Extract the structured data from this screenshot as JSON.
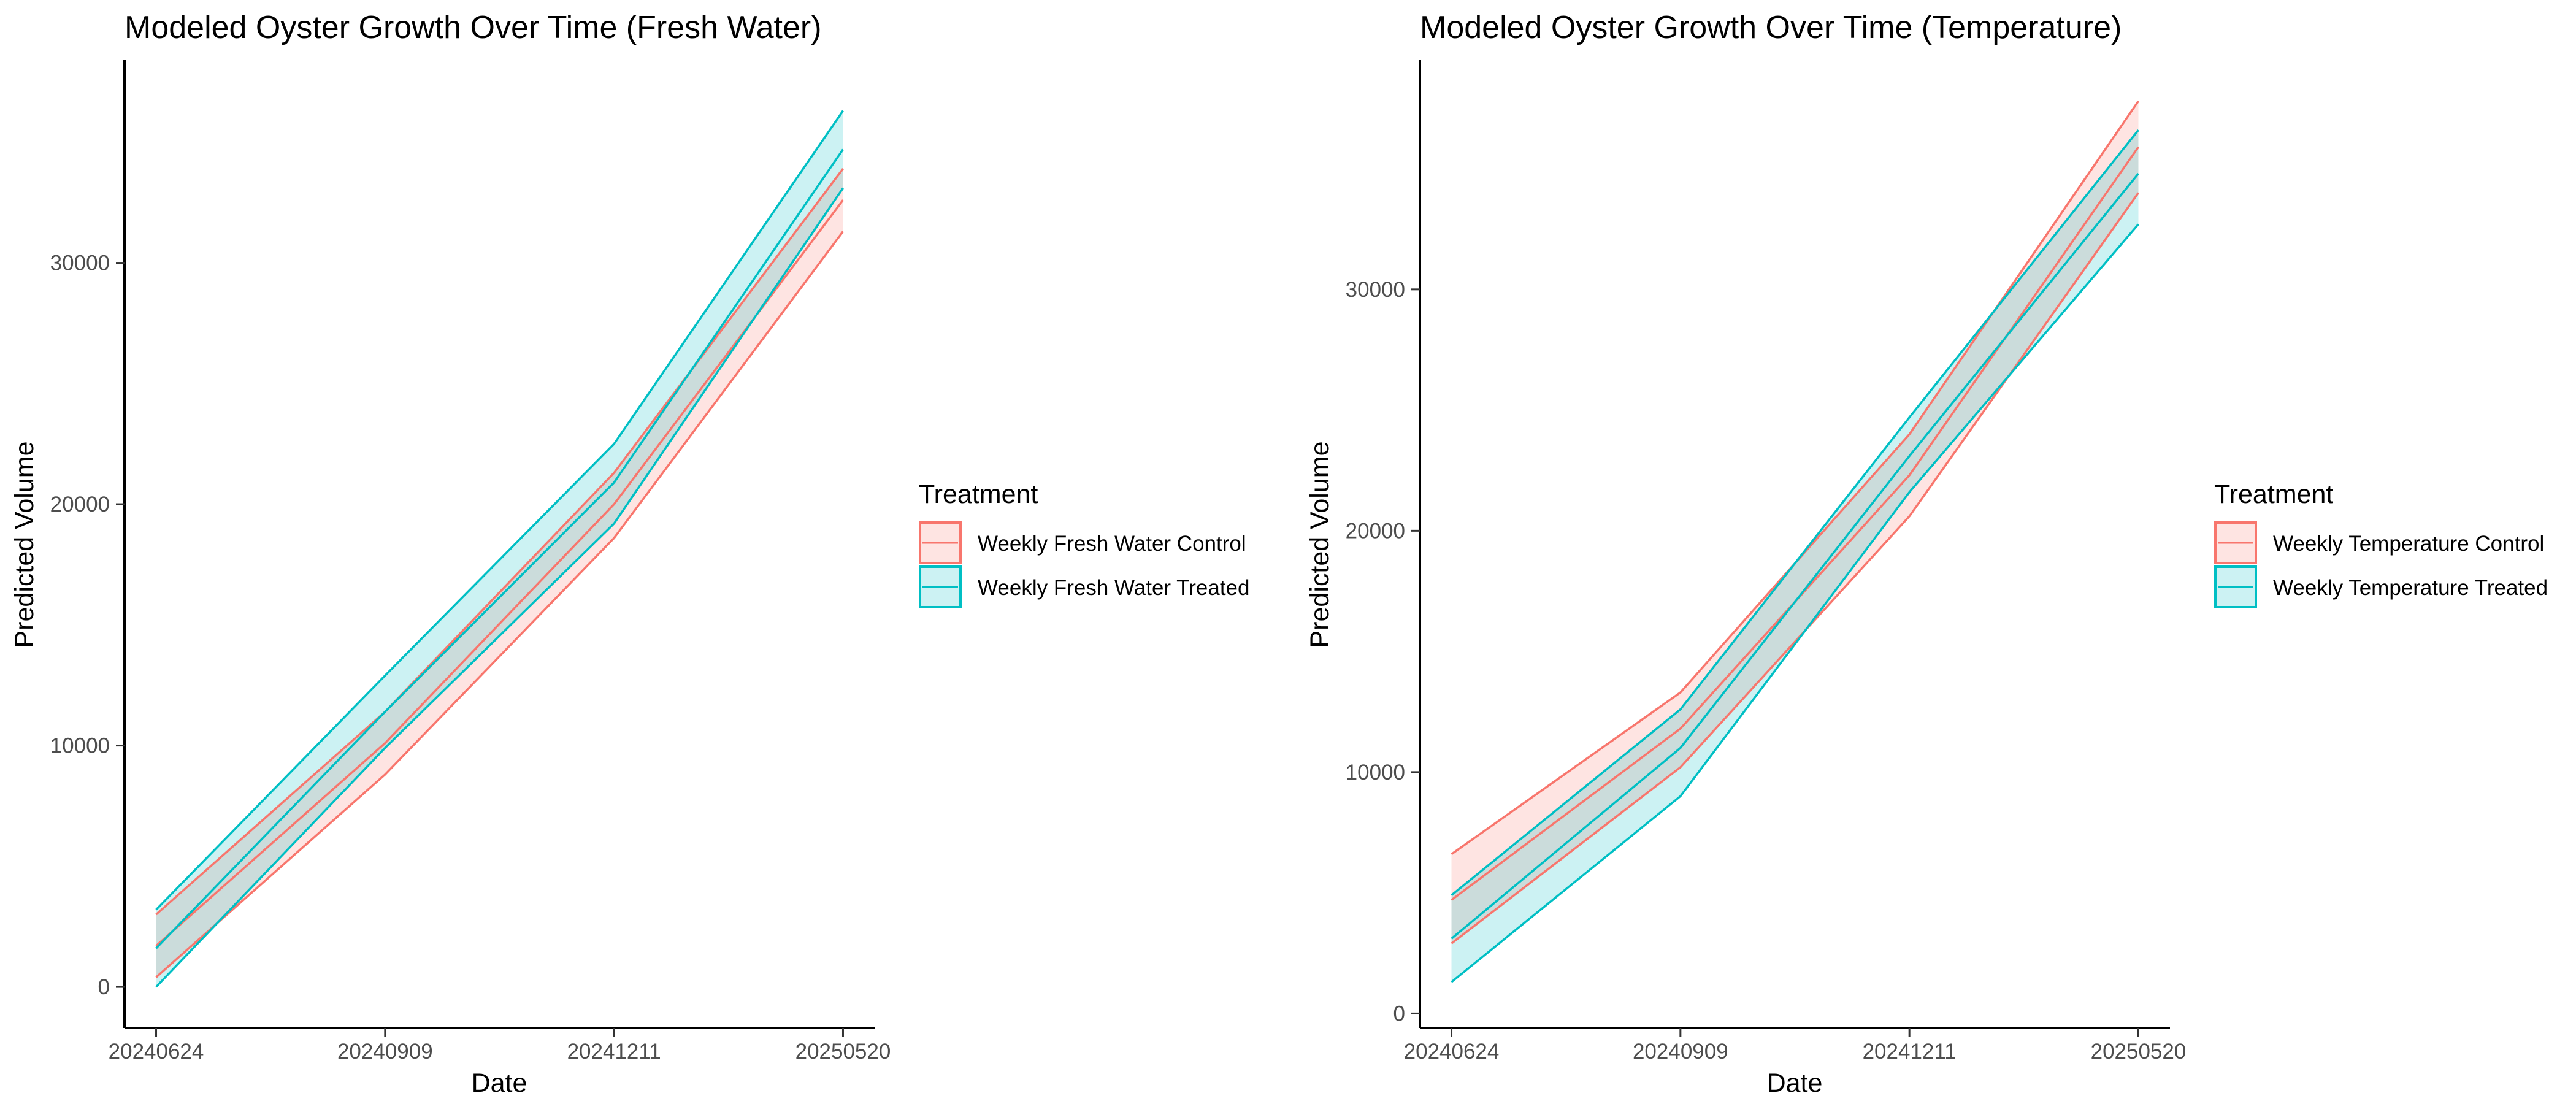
{
  "colors": {
    "control": "#F8766D",
    "treated": "#00BFC4"
  },
  "chart_data": [
    {
      "type": "line",
      "title": "Modeled Oyster Growth Over Time (Fresh Water)",
      "xlabel": "Date",
      "ylabel": "Predicted Volume",
      "categories": [
        "20240624",
        "20240909",
        "20241211",
        "20250520"
      ],
      "yticks": [
        0,
        10000,
        20000,
        30000
      ],
      "ylim": [
        -1700,
        38400
      ],
      "legend": {
        "title": "Treatment",
        "position": "right",
        "items": [
          "Weekly Fresh Water Control",
          "Weekly Fresh Water Treated"
        ]
      },
      "series": [
        {
          "name": "Weekly Fresh Water Control",
          "values": [
            1700,
            10100,
            20000,
            32600
          ],
          "lower": [
            400,
            8800,
            18600,
            31300
          ],
          "upper": [
            3000,
            11400,
            21300,
            33900
          ]
        },
        {
          "name": "Weekly Fresh Water Treated",
          "values": [
            1600,
            11400,
            20900,
            34700
          ],
          "lower": [
            0,
            9900,
            19200,
            33100
          ],
          "upper": [
            3200,
            12900,
            22500,
            36300
          ]
        }
      ]
    },
    {
      "type": "line",
      "title": "Modeled Oyster Growth Over Time (Temperature)",
      "xlabel": "Date",
      "ylabel": "Predicted Volume",
      "categories": [
        "20240624",
        "20240909",
        "20241211",
        "20250520"
      ],
      "yticks": [
        0,
        10000,
        20000,
        30000
      ],
      "ylim": [
        -600,
        39500
      ],
      "legend": {
        "title": "Treatment",
        "position": "right",
        "items": [
          "Weekly Temperature Control",
          "Weekly Temperature Treated"
        ]
      },
      "series": [
        {
          "name": "Weekly Temperature Control",
          "values": [
            4700,
            11800,
            22300,
            35900
          ],
          "lower": [
            2900,
            10200,
            20600,
            34000
          ],
          "upper": [
            6600,
            13300,
            24000,
            37800
          ]
        },
        {
          "name": "Weekly Temperature Treated",
          "values": [
            3100,
            11000,
            23100,
            34800
          ],
          "lower": [
            1300,
            9000,
            21600,
            32700
          ],
          "upper": [
            4900,
            12600,
            24700,
            36600
          ]
        }
      ]
    }
  ]
}
